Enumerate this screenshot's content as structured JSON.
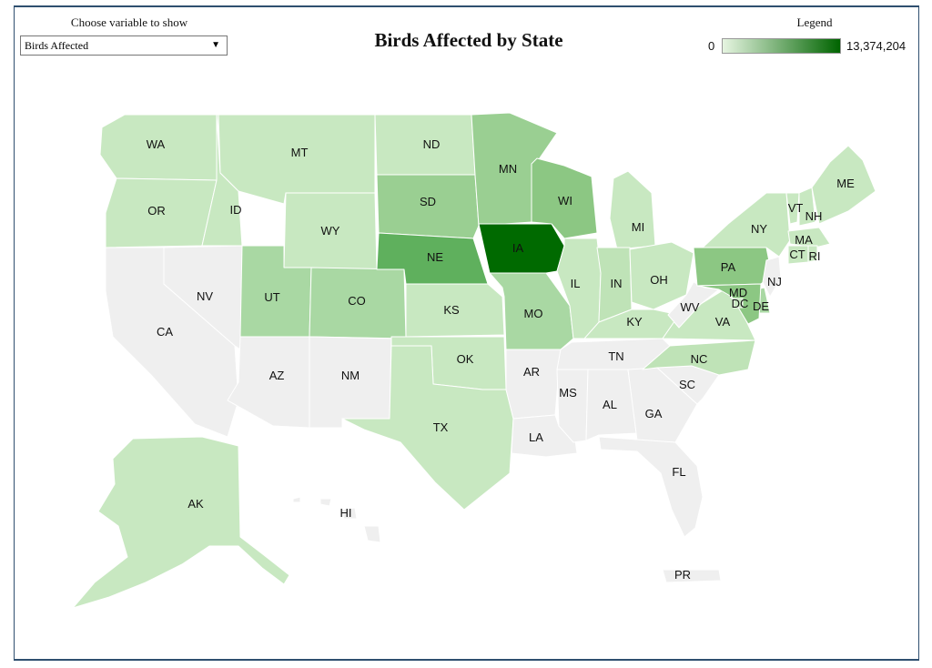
{
  "controls": {
    "label": "Choose variable to show",
    "selected": "Birds Affected"
  },
  "map_title": "Birds Affected by State",
  "legend": {
    "title": "Legend",
    "min": "0",
    "max": "13,374,204",
    "min_color": "#e6f5e1",
    "max_color": "#006400"
  },
  "colors": {
    "none": "#efefef",
    "l1": "#c8e8c1",
    "l2": "#bfe3b7",
    "l3": "#a9d8a3",
    "l4": "#9acf92",
    "l5": "#8cc783",
    "l6": "#5fb05d",
    "l7": "#006a00"
  },
  "states": [
    {
      "id": "WA",
      "label": "WA",
      "level": "l1"
    },
    {
      "id": "OR",
      "label": "OR",
      "level": "l1"
    },
    {
      "id": "CA",
      "label": "CA",
      "level": "none"
    },
    {
      "id": "NV",
      "label": "NV",
      "level": "none"
    },
    {
      "id": "ID",
      "label": "ID",
      "level": "l1"
    },
    {
      "id": "MT",
      "label": "MT",
      "level": "l1"
    },
    {
      "id": "WY",
      "label": "WY",
      "level": "l1"
    },
    {
      "id": "UT",
      "label": "UT",
      "level": "l3"
    },
    {
      "id": "CO",
      "label": "CO",
      "level": "l3"
    },
    {
      "id": "AZ",
      "label": "AZ",
      "level": "none"
    },
    {
      "id": "NM",
      "label": "NM",
      "level": "none"
    },
    {
      "id": "ND",
      "label": "ND",
      "level": "l1"
    },
    {
      "id": "SD",
      "label": "SD",
      "level": "l4"
    },
    {
      "id": "NE",
      "label": "NE",
      "level": "l6"
    },
    {
      "id": "KS",
      "label": "KS",
      "level": "l1"
    },
    {
      "id": "OK",
      "label": "OK",
      "level": "l1"
    },
    {
      "id": "TX",
      "label": "TX",
      "level": "l1"
    },
    {
      "id": "MN",
      "label": "MN",
      "level": "l4"
    },
    {
      "id": "IA",
      "label": "IA",
      "level": "l7"
    },
    {
      "id": "MO",
      "label": "MO",
      "level": "l3"
    },
    {
      "id": "AR",
      "label": "AR",
      "level": "none"
    },
    {
      "id": "LA",
      "label": "LA",
      "level": "none"
    },
    {
      "id": "WI",
      "label": "WI",
      "level": "l5"
    },
    {
      "id": "IL",
      "label": "IL",
      "level": "l1"
    },
    {
      "id": "MI",
      "label": "MI",
      "level": "l1"
    },
    {
      "id": "IN",
      "label": "IN",
      "level": "l2"
    },
    {
      "id": "OH",
      "label": "OH",
      "level": "l1"
    },
    {
      "id": "KY",
      "label": "KY",
      "level": "l1"
    },
    {
      "id": "TN",
      "label": "TN",
      "level": "none"
    },
    {
      "id": "MS",
      "label": "MS",
      "level": "none"
    },
    {
      "id": "AL",
      "label": "AL",
      "level": "none"
    },
    {
      "id": "GA",
      "label": "GA",
      "level": "none"
    },
    {
      "id": "FL",
      "label": "FL",
      "level": "none"
    },
    {
      "id": "SC",
      "label": "SC",
      "level": "none"
    },
    {
      "id": "NC",
      "label": "NC",
      "level": "l2"
    },
    {
      "id": "VA",
      "label": "VA",
      "level": "l1"
    },
    {
      "id": "WV",
      "label": "WV",
      "level": "none"
    },
    {
      "id": "PA",
      "label": "PA",
      "level": "l5"
    },
    {
      "id": "NY",
      "label": "NY",
      "level": "l1"
    },
    {
      "id": "VT",
      "label": "VT",
      "level": "l1"
    },
    {
      "id": "NH",
      "label": "NH",
      "level": "l1"
    },
    {
      "id": "ME",
      "label": "ME",
      "level": "l1"
    },
    {
      "id": "MA",
      "label": "MA",
      "level": "l1"
    },
    {
      "id": "CT",
      "label": "CT",
      "level": "l1"
    },
    {
      "id": "RI",
      "label": "RI",
      "level": "l1"
    },
    {
      "id": "NJ",
      "label": "NJ",
      "level": "none"
    },
    {
      "id": "DE",
      "label": "DE",
      "level": "l3"
    },
    {
      "id": "MD",
      "label": "MD",
      "level": "l5"
    },
    {
      "id": "DC",
      "label": "DC",
      "level": "l1"
    },
    {
      "id": "AK",
      "label": "AK",
      "level": "l1"
    },
    {
      "id": "HI",
      "label": "HI",
      "level": "none"
    },
    {
      "id": "PR",
      "label": "PR",
      "level": "none"
    }
  ]
}
